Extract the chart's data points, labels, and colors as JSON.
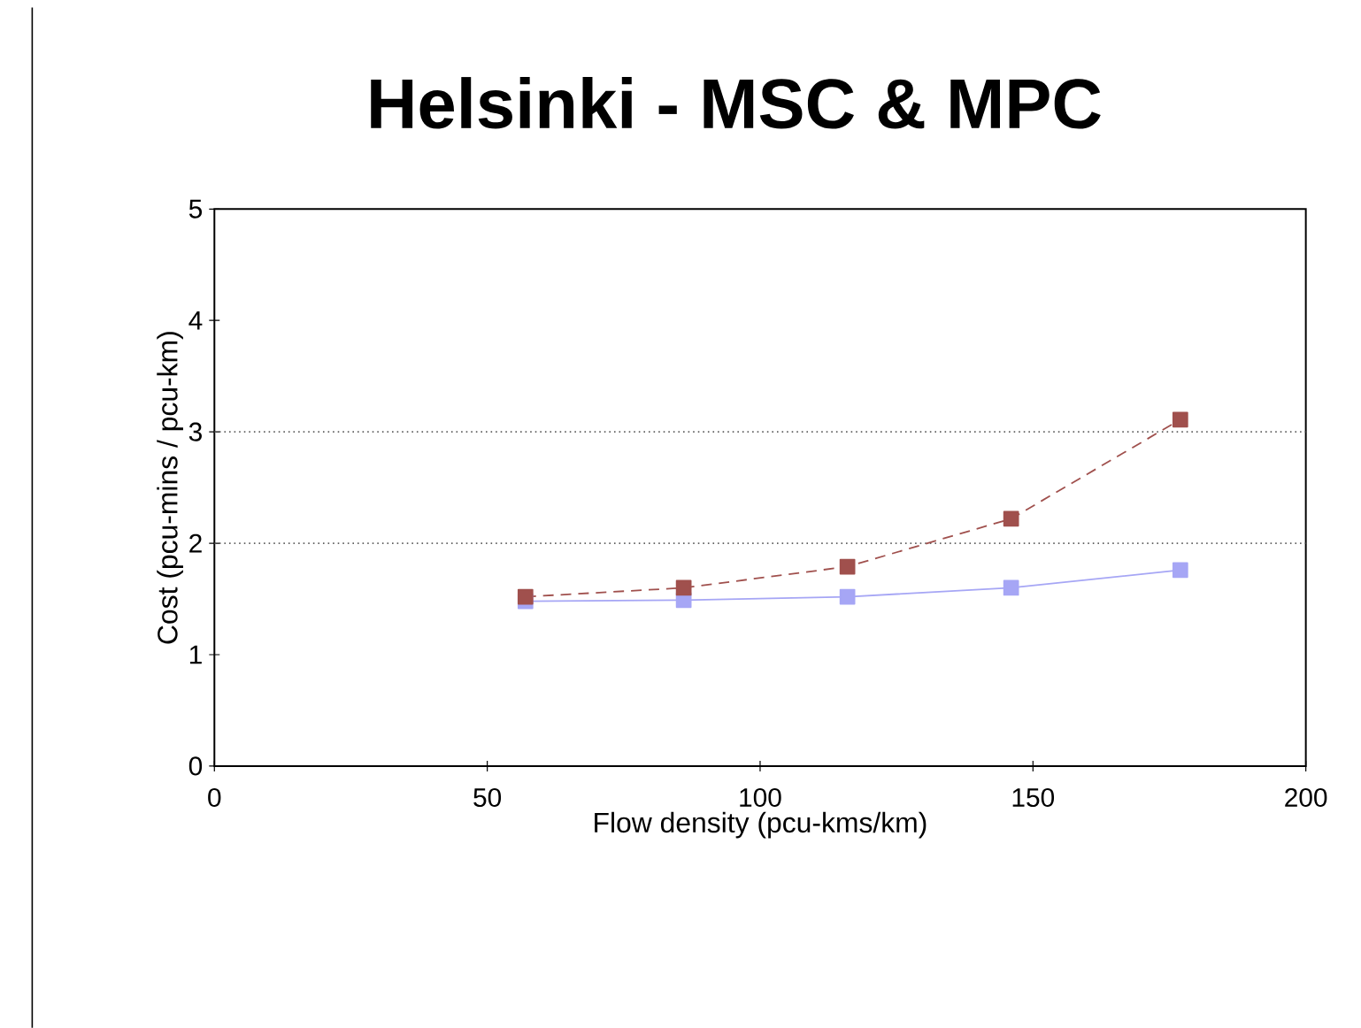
{
  "chart_data": {
    "type": "line",
    "title": "Helsinki - MSC & MPC",
    "xlabel": "Flow density (pcu-kms/km)",
    "ylabel": "Cost (pcu-mins / pcu-km)",
    "x": [
      57,
      86,
      116,
      146,
      177
    ],
    "series": [
      {
        "color": "#a0504d",
        "values": [
          1.52,
          1.6,
          1.79,
          2.22,
          3.11
        ],
        "line_style": "dashed"
      },
      {
        "color": "#a6a6f5",
        "values": [
          1.48,
          1.49,
          1.52,
          1.6,
          1.76
        ],
        "line_style": "solid"
      }
    ],
    "xlim": [
      0,
      200
    ],
    "xticks": [
      0,
      50,
      100,
      150,
      200
    ],
    "ylim": [
      0,
      5
    ],
    "yticks": [
      0,
      1,
      2,
      3,
      4,
      5
    ],
    "ref_lines": [
      {
        "axis": "y",
        "value": 2,
        "line_style": "dotted",
        "color": "#606060"
      },
      {
        "axis": "y",
        "value": 3,
        "line_style": "dotted",
        "color": "#606060"
      }
    ],
    "grid": false,
    "marker": "square"
  }
}
